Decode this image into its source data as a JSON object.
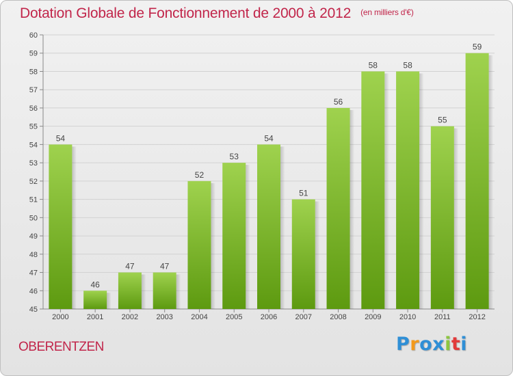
{
  "header": {
    "title": "Dotation Globale de Fonctionnement de 2000 à 2012",
    "unit": "(en milliers d'€)"
  },
  "footer": {
    "commune": "OBERENTZEN",
    "brand": "Proxiti"
  },
  "colors": {
    "title": "#c1254a",
    "bar_top": "#9fd24e",
    "bar_bottom": "#5d9a10",
    "brand": [
      "#2f8fd6",
      "#f39a1c",
      "#2f8fd6",
      "#2f8fd6",
      "#8cc63f",
      "#e2393a",
      "#2f8fd6"
    ]
  },
  "chart_data": {
    "type": "bar",
    "categories": [
      "2000",
      "2001",
      "2002",
      "2003",
      "2004",
      "2005",
      "2006",
      "2007",
      "2008",
      "2009",
      "2010",
      "2011",
      "2012"
    ],
    "values": [
      54,
      46,
      47,
      47,
      52,
      53,
      54,
      51,
      56,
      58,
      58,
      55,
      59
    ],
    "ylim": [
      45,
      60
    ],
    "yticks": [
      45,
      46,
      47,
      48,
      49,
      50,
      51,
      52,
      53,
      54,
      55,
      56,
      57,
      58,
      59,
      60
    ],
    "grid": true
  }
}
